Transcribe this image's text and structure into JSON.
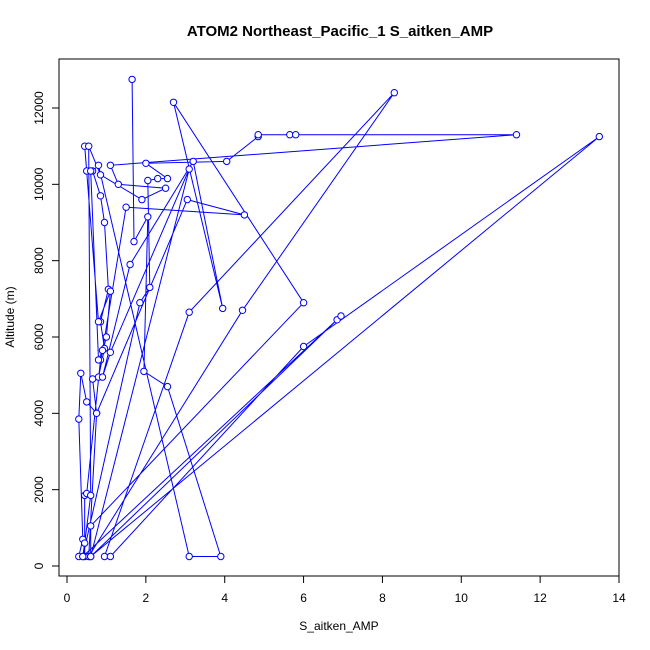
{
  "chart_data": {
    "type": "line",
    "title": "ATOM2 Northeast_Pacific_1 S_aitken_AMP",
    "xlabel": "S_aitken_AMP",
    "ylabel": "Altitude (m)",
    "xlim": [
      0,
      14
    ],
    "ylim": [
      0,
      13000
    ],
    "x_ticks": [
      0,
      2,
      4,
      6,
      8,
      10,
      12,
      14
    ],
    "y_ticks": [
      0,
      2000,
      4000,
      6000,
      8000,
      10000,
      12000
    ],
    "grid": false,
    "legend": "none",
    "color": "#0000ff",
    "series": [
      {
        "points": [
          [
            1.65,
            12750
          ],
          [
            1.7,
            8500
          ],
          [
            2.05,
            9150
          ],
          [
            1.95,
            5100
          ],
          [
            2.55,
            4700
          ],
          [
            3.9,
            250
          ],
          [
            3.1,
            250
          ],
          [
            0.8,
            10500
          ],
          [
            0.65,
            10350
          ],
          [
            0.85,
            9700
          ],
          [
            0.95,
            9000
          ],
          [
            1.05,
            7250
          ],
          [
            0.85,
            6400
          ],
          [
            0.95,
            5700
          ],
          [
            0.8,
            4950
          ],
          [
            0.65,
            4900
          ],
          [
            0.75,
            4000
          ],
          [
            0.5,
            4300
          ],
          [
            0.35,
            5050
          ],
          [
            0.3,
            3850
          ],
          [
            0.4,
            700
          ],
          [
            0.3,
            250
          ],
          [
            0.45,
            250
          ],
          [
            0.45,
            1850
          ],
          [
            0.5,
            1900
          ],
          [
            0.85,
            5400
          ],
          [
            1.0,
            6000
          ],
          [
            1.1,
            7200
          ],
          [
            0.8,
            6400
          ],
          [
            0.45,
            11000
          ],
          [
            0.5,
            10350
          ],
          [
            0.6,
            10350
          ],
          [
            0.8,
            5400
          ],
          [
            0.9,
            5650
          ],
          [
            1.5,
            9400
          ],
          [
            4.5,
            9200
          ],
          [
            3.05,
            9600
          ],
          [
            0.75,
            4000
          ],
          [
            0.55,
            250
          ],
          [
            4.45,
            6700
          ],
          [
            8.3,
            12400
          ],
          [
            3.1,
            6650
          ],
          [
            0.95,
            250
          ],
          [
            1.1,
            250
          ],
          [
            6.0,
            5750
          ],
          [
            13.5,
            11250
          ],
          [
            0.6,
            250
          ],
          [
            0.6,
            1050
          ],
          [
            6.0,
            6900
          ],
          [
            2.7,
            12150
          ],
          [
            3.95,
            6750
          ],
          [
            3.2,
            10600
          ],
          [
            1.6,
            7900
          ],
          [
            0.9,
            4950
          ],
          [
            1.1,
            5600
          ],
          [
            3.1,
            10400
          ],
          [
            0.6,
            250
          ],
          [
            6.85,
            6450
          ],
          [
            6.95,
            6550
          ],
          [
            0.4,
            250
          ],
          [
            1.85,
            6900
          ],
          [
            2.1,
            7300
          ],
          [
            2.05,
            10100
          ],
          [
            2.3,
            10150
          ],
          [
            2.55,
            10150
          ],
          [
            2.0,
            10550
          ],
          [
            4.05,
            10600
          ],
          [
            4.85,
            11250
          ],
          [
            4.85,
            11300
          ],
          [
            5.65,
            11300
          ],
          [
            5.8,
            11300
          ],
          [
            11.4,
            11300
          ],
          [
            1.1,
            10500
          ],
          [
            1.3,
            10000
          ],
          [
            2.5,
            9900
          ],
          [
            1.9,
            9600
          ],
          [
            0.85,
            10250
          ],
          [
            0.55,
            11000
          ],
          [
            0.6,
            1850
          ],
          [
            0.45,
            600
          ],
          [
            0.4,
            250
          ]
        ]
      }
    ]
  }
}
